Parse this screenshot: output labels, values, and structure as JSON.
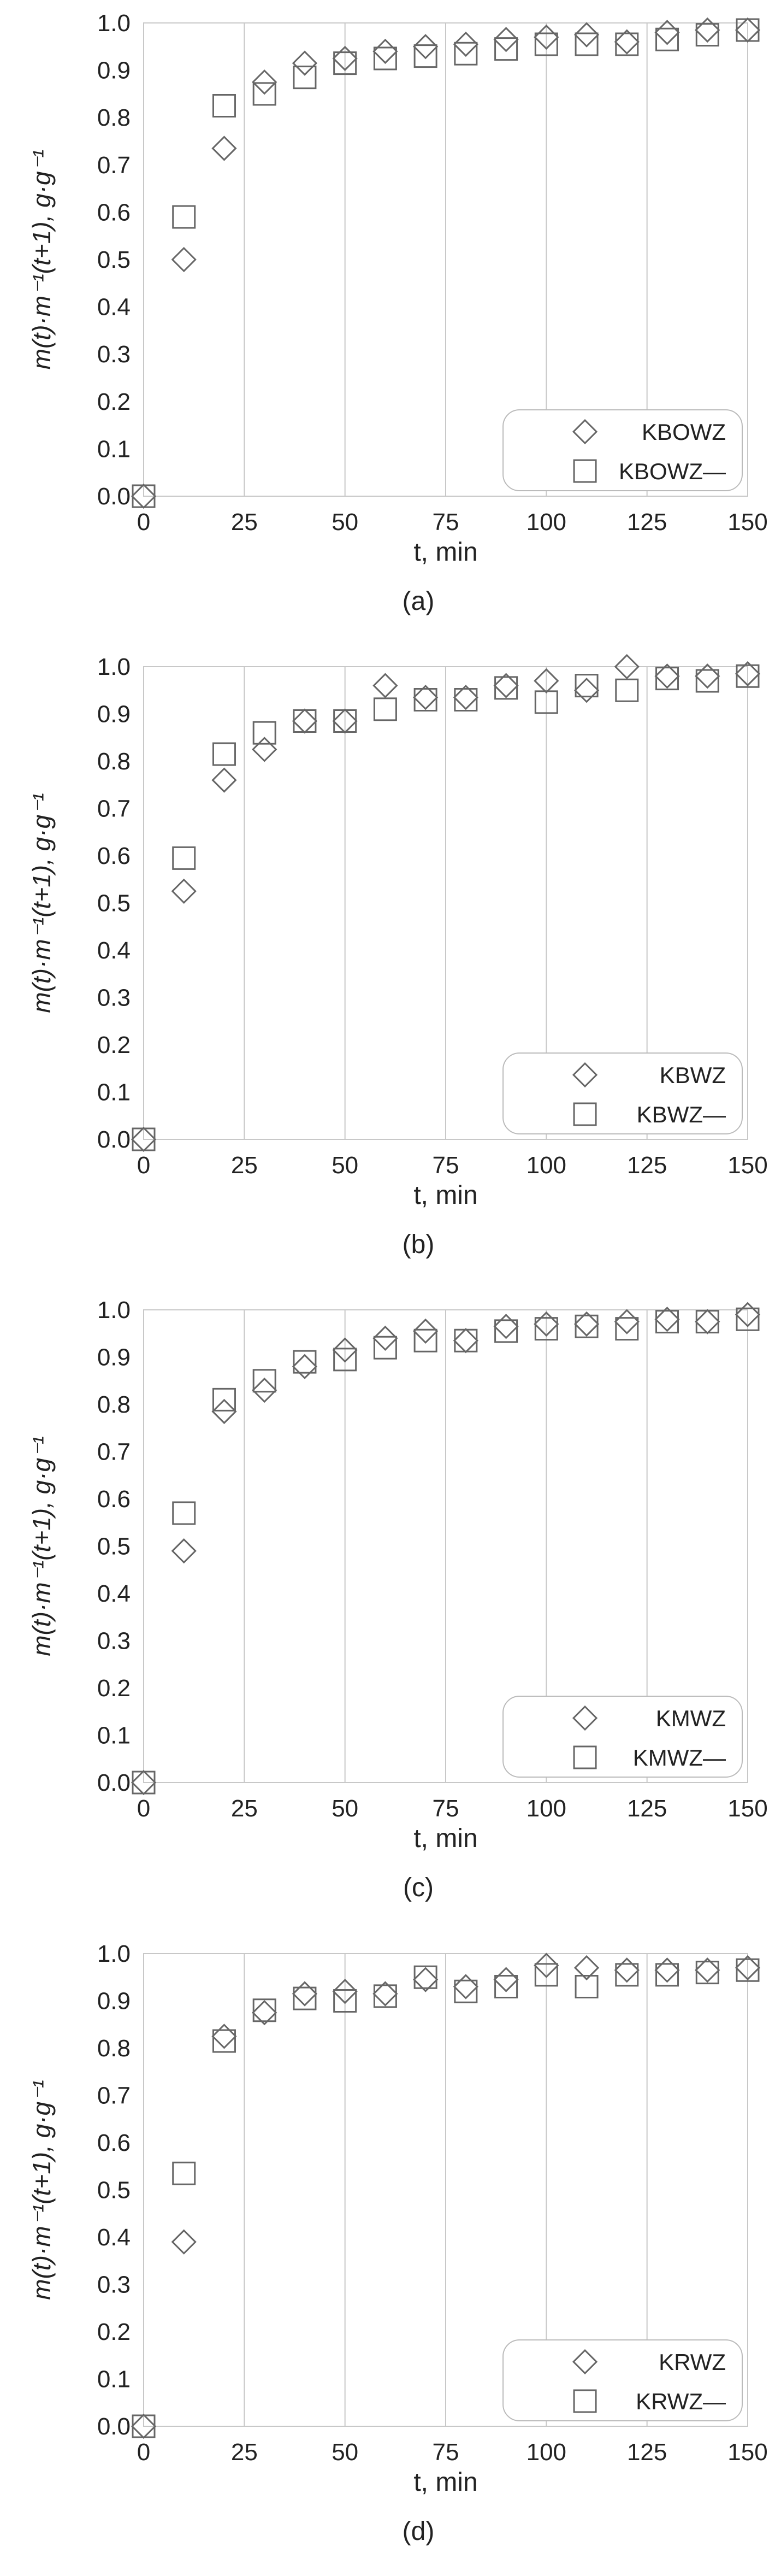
{
  "colors": {
    "background": "#ffffff",
    "grid": "#c8c8c8",
    "axis_text": "#222222",
    "marker_stroke": "#666666",
    "legend_border": "#bbbbbb"
  },
  "chart_data": [
    {
      "type": "scatter",
      "panel_label": "(a)",
      "ylabel": "m(t)·m⁻¹(t+1), g·g⁻¹",
      "xlabel": "t, min",
      "xlim": [
        0,
        150
      ],
      "ylim": [
        0,
        1.0
      ],
      "xticks": [
        0,
        25,
        50,
        75,
        100,
        125,
        150
      ],
      "yticks": [
        0.0,
        0.1,
        0.2,
        0.3,
        0.4,
        0.5,
        0.6,
        0.7,
        0.8,
        0.9,
        1.0
      ],
      "grid": "vertical",
      "legend_position": "bottom-right",
      "series": [
        {
          "name": "KBOWZ",
          "marker": "diamond",
          "x": [
            0,
            10,
            20,
            30,
            40,
            50,
            60,
            70,
            80,
            90,
            100,
            110,
            120,
            130,
            140,
            150
          ],
          "y": [
            0.0,
            0.5,
            0.735,
            0.875,
            0.915,
            0.925,
            0.94,
            0.95,
            0.955,
            0.965,
            0.97,
            0.975,
            0.96,
            0.98,
            0.985,
            0.985
          ]
        },
        {
          "name": "KBOWZ—",
          "marker": "square",
          "x": [
            0,
            10,
            20,
            30,
            40,
            50,
            60,
            70,
            80,
            90,
            100,
            110,
            120,
            130,
            140,
            150
          ],
          "y": [
            0.0,
            0.59,
            0.825,
            0.85,
            0.885,
            0.915,
            0.925,
            0.93,
            0.935,
            0.945,
            0.955,
            0.955,
            0.955,
            0.965,
            0.975,
            0.985
          ]
        }
      ]
    },
    {
      "type": "scatter",
      "panel_label": "(b)",
      "ylabel": "m(t)·m⁻¹(t+1), g·g⁻¹",
      "xlabel": "t, min",
      "xlim": [
        0,
        150
      ],
      "ylim": [
        0,
        1.0
      ],
      "xticks": [
        0,
        25,
        50,
        75,
        100,
        125,
        150
      ],
      "yticks": [
        0.0,
        0.1,
        0.2,
        0.3,
        0.4,
        0.5,
        0.6,
        0.7,
        0.8,
        0.9,
        1.0
      ],
      "grid": "vertical",
      "legend_position": "bottom-right",
      "series": [
        {
          "name": "KBWZ",
          "marker": "diamond",
          "x": [
            0,
            10,
            20,
            30,
            40,
            50,
            60,
            70,
            80,
            90,
            100,
            110,
            120,
            130,
            140,
            150
          ],
          "y": [
            0.0,
            0.525,
            0.76,
            0.825,
            0.885,
            0.885,
            0.96,
            0.935,
            0.935,
            0.96,
            0.97,
            0.95,
            1.0,
            0.98,
            0.98,
            0.985
          ]
        },
        {
          "name": "KBWZ—",
          "marker": "square",
          "x": [
            0,
            10,
            20,
            30,
            40,
            50,
            60,
            70,
            80,
            90,
            100,
            110,
            120,
            130,
            140,
            150
          ],
          "y": [
            0.0,
            0.595,
            0.815,
            0.86,
            0.885,
            0.885,
            0.91,
            0.93,
            0.93,
            0.955,
            0.925,
            0.96,
            0.95,
            0.975,
            0.97,
            0.98
          ]
        }
      ]
    },
    {
      "type": "scatter",
      "panel_label": "(c)",
      "ylabel": "m(t)·m⁻¹(t+1), g·g⁻¹",
      "xlabel": "t, min",
      "xlim": [
        0,
        150
      ],
      "ylim": [
        0,
        1.0
      ],
      "xticks": [
        0,
        25,
        50,
        75,
        100,
        125,
        150
      ],
      "yticks": [
        0.0,
        0.1,
        0.2,
        0.3,
        0.4,
        0.5,
        0.6,
        0.7,
        0.8,
        0.9,
        1.0
      ],
      "grid": "vertical",
      "legend_position": "bottom-right",
      "series": [
        {
          "name": "KMWZ",
          "marker": "diamond",
          "x": [
            0,
            10,
            20,
            30,
            40,
            50,
            60,
            70,
            80,
            90,
            100,
            110,
            120,
            130,
            140,
            150
          ],
          "y": [
            0.0,
            0.49,
            0.785,
            0.83,
            0.88,
            0.915,
            0.94,
            0.955,
            0.935,
            0.965,
            0.97,
            0.97,
            0.975,
            0.98,
            0.975,
            0.99
          ]
        },
        {
          "name": "KMWZ—",
          "marker": "square",
          "x": [
            0,
            10,
            20,
            30,
            40,
            50,
            60,
            70,
            80,
            90,
            100,
            110,
            120,
            130,
            140,
            150
          ],
          "y": [
            0.0,
            0.57,
            0.81,
            0.85,
            0.89,
            0.895,
            0.92,
            0.935,
            0.935,
            0.955,
            0.96,
            0.965,
            0.96,
            0.975,
            0.975,
            0.98
          ]
        }
      ]
    },
    {
      "type": "scatter",
      "panel_label": "(d)",
      "ylabel": "m(t)·m⁻¹(t+1), g·g⁻¹",
      "xlabel": "t, min",
      "xlim": [
        0,
        150
      ],
      "ylim": [
        0,
        1.0
      ],
      "xticks": [
        0,
        25,
        50,
        75,
        100,
        125,
        150
      ],
      "yticks": [
        0.0,
        0.1,
        0.2,
        0.3,
        0.4,
        0.5,
        0.6,
        0.7,
        0.8,
        0.9,
        1.0
      ],
      "grid": "vertical",
      "legend_position": "bottom-right",
      "series": [
        {
          "name": "KRWZ",
          "marker": "diamond",
          "x": [
            0,
            10,
            20,
            30,
            40,
            50,
            60,
            70,
            80,
            90,
            100,
            110,
            120,
            130,
            140,
            150
          ],
          "y": [
            0.0,
            0.39,
            0.825,
            0.875,
            0.915,
            0.92,
            0.915,
            0.945,
            0.93,
            0.945,
            0.975,
            0.97,
            0.965,
            0.965,
            0.965,
            0.97
          ]
        },
        {
          "name": "KRWZ—",
          "marker": "square",
          "x": [
            0,
            10,
            20,
            30,
            40,
            50,
            60,
            70,
            80,
            90,
            100,
            110,
            120,
            130,
            140,
            150
          ],
          "y": [
            0.0,
            0.535,
            0.815,
            0.88,
            0.905,
            0.9,
            0.91,
            0.95,
            0.92,
            0.93,
            0.955,
            0.93,
            0.955,
            0.955,
            0.96,
            0.965
          ]
        }
      ]
    }
  ]
}
